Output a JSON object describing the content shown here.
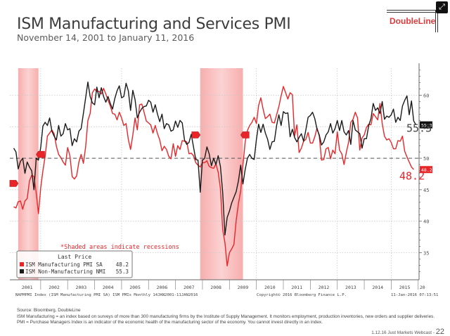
{
  "slide": {
    "title": "ISM Manufacturing and Services PMI",
    "subtitle": "November 14, 2001 to January 11, 2016",
    "logo": "DoubleLine",
    "expand_icon": "expand-icon"
  },
  "footer": {
    "source": "Source: Bloomberg, DoubleLine",
    "note": "ISM Manufacturing = an index based on surveys of more than 300 manufacturing firms by the Institute of Supply Management. It monitors employment, production inventories, new orders and supplier deliveries. PMI = Purchase Managers Index is an indicator of the economic health of the manufacturing sector of the economy. You cannot invest directly in an index.",
    "webcast": "1.12.16 Just Markets Webcast",
    "page_sep": " - ",
    "page_number": "22"
  },
  "chart_data": {
    "type": "line",
    "title": "ISM Manufacturing and Services PMI",
    "xlabel": "",
    "ylabel": "",
    "x_start": "2001-01",
    "x_end": "2016-01",
    "x_ticks": [
      "2001",
      "2002",
      "2003",
      "2004",
      "2005",
      "2006",
      "2007",
      "2008",
      "2009",
      "2010",
      "2011",
      "2012",
      "2013",
      "2014",
      "2015",
      "20"
    ],
    "ylim": [
      30.7,
      64.3
    ],
    "y_ticks": [
      35,
      40,
      45,
      50,
      55,
      60
    ],
    "reference_line": 50,
    "grid": true,
    "legend": {
      "title": "Last Price",
      "placement": "bottom-left",
      "entries": [
        {
          "name": "ISM Manufacturing PMI SA",
          "last": "48.2",
          "color": "#e8262a"
        },
        {
          "name": "ISM Non-Manufacturing NMI",
          "last": "55.3",
          "color": "#1a1a1a"
        }
      ]
    },
    "annotation": "*Shaded areas indicate recessions",
    "recessions": [
      [
        "2001-03",
        "2001-11"
      ],
      [
        "2007-12",
        "2009-06"
      ]
    ],
    "rec_markers": [
      {
        "date": "2001-03",
        "value": 46.0,
        "dir": "right"
      },
      {
        "date": "2001-11",
        "value": 50.6,
        "dir": "left"
      },
      {
        "date": "2007-12",
        "value": 53.7,
        "dir": "right"
      },
      {
        "date": "2009-06",
        "value": 53.7,
        "dir": "left"
      }
    ],
    "last_labels": {
      "manufacturing": "48.2",
      "non_manufacturing": "55.3"
    },
    "bottom_caption_left": "NAPMPMI Index (ISM Manufacturing PMI SA) ISM PMIs  Monthly 14JAN2001-11JAN2016",
    "bottom_caption_center": "Copyright© 2016 Bloomberg Finance L.P.",
    "bottom_caption_right": "11-Jan-2016 07:13:51",
    "series": [
      {
        "name": "ISM Manufacturing PMI SA",
        "color": "#e8262a",
        "values": [
          42.3,
          42.1,
          43.1,
          43.2,
          41.9,
          43.2,
          43.6,
          46.4,
          47.3,
          47.1,
          44.5,
          41.2,
          45.3,
          48.0,
          50.3,
          53.5,
          54.0,
          54.5,
          53.9,
          51.9,
          50.6,
          50.1,
          49.4,
          48.9,
          51.7,
          50.4,
          47.1,
          46.7,
          47.2,
          49.4,
          50.6,
          49.2,
          51.8,
          56.0,
          57.1,
          60.4,
          61.0,
          60.6,
          60.6,
          60.2,
          61.1,
          60.2,
          59.2,
          58.3,
          57.1,
          57.0,
          56.1,
          57.3,
          56.4,
          55.2,
          55.5,
          53.0,
          51.4,
          53.7,
          56.4,
          54.5,
          58.5,
          58.6,
          57.3,
          55.9,
          55.6,
          55.3,
          54.0,
          55.2,
          53.9,
          52.9,
          51.2,
          51.9,
          51.4,
          50.3,
          49.9,
          52.3,
          50.3,
          52.0,
          51.4,
          52.8,
          52.7,
          52.6,
          50.7,
          50.8,
          50.4,
          49.3,
          48.9,
          48.6,
          49.3,
          49.3,
          49.6,
          48.7,
          48.5,
          48.4,
          49.1,
          47.8,
          45.2,
          38.7,
          36.6,
          32.9,
          35.0,
          35.6,
          36.3,
          40.1,
          42.8,
          44.8,
          48.9,
          52.6,
          54.4,
          55.2,
          55.7,
          56.5,
          55.5,
          58.4,
          59.6,
          57.8,
          56.3,
          56.6,
          57.0,
          55.7,
          55.6,
          56.9,
          58.2,
          59.9,
          61.4,
          60.4,
          59.4,
          60.4,
          60.1,
          53.5,
          55.3,
          50.9,
          51.6,
          52.7,
          53.0,
          54.1,
          52.4,
          52.4,
          53.4,
          54.8,
          53.5,
          49.7,
          49.8,
          51.5,
          51.7,
          49.9,
          51.3,
          50.7,
          54.2,
          51.3,
          50.7,
          49.0,
          50.9,
          52.5,
          55.7,
          56.2,
          57.3,
          56.4,
          51.3,
          53.2,
          53.7,
          54.9,
          55.4,
          55.3,
          57.1,
          56.6,
          56.1,
          58.7,
          55.5,
          53.5,
          52.9,
          53.1,
          52.5,
          51.5,
          51.5,
          52.8,
          52.7,
          53.5,
          51.1,
          50.2,
          49.4,
          48.6,
          48.2
        ],
        "last_value": 48.2
      },
      {
        "name": "ISM Non-Manufacturing NMI",
        "color": "#1a1a1a",
        "values": [
          51.6,
          51.0,
          48.3,
          49.5,
          50.0,
          47.6,
          49.4,
          48.6,
          48.0,
          45.0,
          50.0,
          49.7,
          51.7,
          55.1,
          55.7,
          55.2,
          56.4,
          54.3,
          53.5,
          52.9,
          55.2,
          53.5,
          53.9,
          55.5,
          54.5,
          54.7,
          52.0,
          53.1,
          52.6,
          54.3,
          54.7,
          57.1,
          59.6,
          62.1,
          59.8,
          58.8,
          58.5,
          61.3,
          59.6,
          61.2,
          59.8,
          58.9,
          59.8,
          58.7,
          57.8,
          59.5,
          60.7,
          61.5,
          59.6,
          59.8,
          61.9,
          60.7,
          57.6,
          60.8,
          59.3,
          56.4,
          57.3,
          57.9,
          58.2,
          58.3,
          59.2,
          58.9,
          57.3,
          58.5,
          57.0,
          55.8,
          57.0,
          54.7,
          55.5,
          55.3,
          54.3,
          54.5,
          55.9,
          54.9,
          56.0,
          55.6,
          52.9,
          52.2,
          52.5,
          53.8,
          51.8,
          49.8,
          49.7,
          44.6,
          49.7,
          50.0,
          51.8,
          50.7,
          48.8,
          50.0,
          49.0,
          50.4,
          48.7,
          44.6,
          37.8,
          40.6,
          41.6,
          42.9,
          43.8,
          44.7,
          46.4,
          48.9,
          45.9,
          48.2,
          50.0,
          50.6,
          50.0,
          49.8,
          53.0,
          55.4,
          54.1,
          55.4,
          54.0,
          53.0,
          51.4,
          52.6,
          52.7,
          55.2,
          56.9,
          55.2,
          57.4,
          57.1,
          57.2,
          53.4,
          54.6,
          53.3,
          52.6,
          53.3,
          53.9,
          52.7,
          54.5,
          56.5,
          56.8,
          57.3,
          56.3,
          54.6,
          53.7,
          52.1,
          52.6,
          53.7,
          54.2,
          55.5,
          54.0,
          54.7,
          56.0,
          54.4,
          56.0,
          54.2,
          53.7,
          54.4,
          52.2,
          56.0,
          54.5,
          54.2,
          53.9,
          51.6,
          53.1,
          53.1,
          55.2,
          56.3,
          58.7,
          57.6,
          58.0,
          57.1,
          59.0,
          56.2,
          56.7,
          56.5,
          56.9,
          57.8,
          55.7,
          56.5,
          56.0,
          58.3,
          59.2,
          59.9,
          56.9,
          59.1,
          55.9,
          55.3
        ],
        "last_value": 55.3
      }
    ]
  }
}
